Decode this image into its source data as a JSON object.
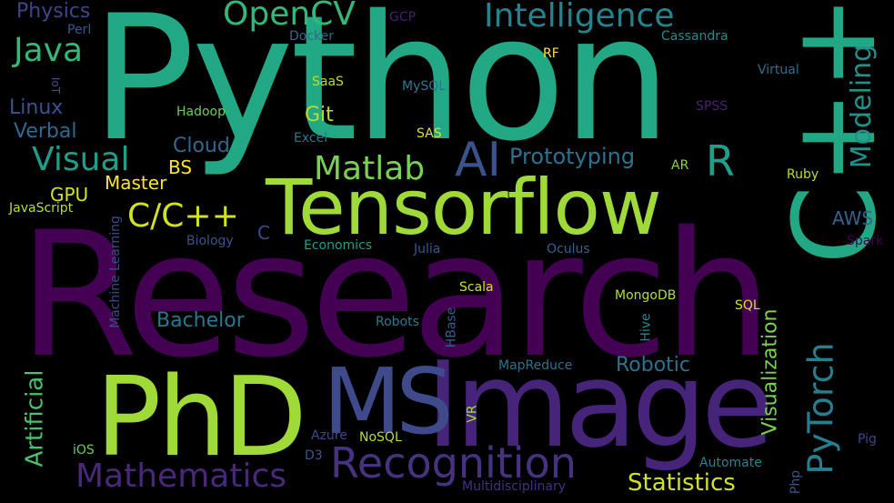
{
  "words": [
    {
      "id": "python",
      "text": "Python",
      "color": "#22a884"
    },
    {
      "id": "research",
      "text": "Research",
      "color": "#440154"
    },
    {
      "id": "tensorflow",
      "text": "Tensorflow",
      "color": "#a0da39"
    },
    {
      "id": "phd",
      "text": "PhD",
      "color": "#a0da39"
    },
    {
      "id": "image",
      "text": "Image",
      "color": "#46247a"
    },
    {
      "id": "ms",
      "text": "MS",
      "color": "#3e4a89"
    },
    {
      "id": "cpp",
      "text": "C++",
      "color": "#22a884"
    },
    {
      "id": "recognition",
      "text": "Recognition",
      "color": "#46327e"
    },
    {
      "id": "mathematics",
      "text": "Mathematics",
      "color": "#482878"
    },
    {
      "id": "pytorch",
      "text": "PyTorch",
      "color": "#277f8e"
    },
    {
      "id": "ai",
      "text": "AI",
      "color": "#3b528b"
    },
    {
      "id": "r",
      "text": "R",
      "color": "#1f9e89"
    },
    {
      "id": "opencv",
      "text": "OpenCV",
      "color": "#35b779"
    },
    {
      "id": "intelligence",
      "text": "Intelligence",
      "color": "#25838e"
    },
    {
      "id": "java",
      "text": "Java",
      "color": "#35b779"
    },
    {
      "id": "matlab",
      "text": "Matlab",
      "color": "#7ad151"
    },
    {
      "id": "visual",
      "text": "Visual",
      "color": "#1f9e89"
    },
    {
      "id": "cc",
      "text": "C/C++",
      "color": "#d2e21b"
    },
    {
      "id": "modeling",
      "text": "Modeling",
      "color": "#21918c"
    },
    {
      "id": "prototyping",
      "text": "Prototyping",
      "color": "#2c728e"
    },
    {
      "id": "statistics",
      "text": "Statistics",
      "color": "#d2e21b"
    },
    {
      "id": "artificial",
      "text": "Artificial",
      "color": "#4ac16d"
    },
    {
      "id": "visualization",
      "text": "Visualization",
      "color": "#7ad151"
    },
    {
      "id": "robotic",
      "text": "Robotic",
      "color": "#2c728e"
    },
    {
      "id": "bachelor",
      "text": "Bachelor",
      "color": "#2a788e"
    },
    {
      "id": "physics",
      "text": "Physics",
      "color": "#414487"
    },
    {
      "id": "linux",
      "text": "Linux",
      "color": "#3b528b"
    },
    {
      "id": "verbal",
      "text": "Verbal",
      "color": "#31688e"
    },
    {
      "id": "git",
      "text": "Git",
      "color": "#b5de2b"
    },
    {
      "id": "cloud",
      "text": "Cloud",
      "color": "#31688e"
    },
    {
      "id": "master",
      "text": "Master",
      "color": "#fde725"
    },
    {
      "id": "bs",
      "text": "BS",
      "color": "#fde725"
    },
    {
      "id": "gpu",
      "text": "GPU",
      "color": "#d2e21b"
    },
    {
      "id": "aws",
      "text": "AWS",
      "color": "#33638d"
    },
    {
      "id": "c",
      "text": "C",
      "color": "#3e4a89"
    },
    {
      "id": "cassandra",
      "text": "Cassandra",
      "color": "#238a8d"
    },
    {
      "id": "docker",
      "text": "Docker",
      "color": "#31688e"
    },
    {
      "id": "perl",
      "text": "Perl",
      "color": "#38598c"
    },
    {
      "id": "gcp",
      "text": "GCP",
      "color": "#481f70"
    },
    {
      "id": "rf",
      "text": "RF",
      "color": "#fde725"
    },
    {
      "id": "virtual",
      "text": "Virtual",
      "color": "#2d708e"
    },
    {
      "id": "saas",
      "text": "SaaS",
      "color": "#b5de2b"
    },
    {
      "id": "mysql",
      "text": "MySQL",
      "color": "#2a788e"
    },
    {
      "id": "hadoop",
      "text": "Hadoop",
      "color": "#6ccd5a"
    },
    {
      "id": "spss",
      "text": "SPSS",
      "color": "#482173"
    },
    {
      "id": "excel",
      "text": "Excel",
      "color": "#2a788e"
    },
    {
      "id": "sas",
      "text": "SAS",
      "color": "#dde318"
    },
    {
      "id": "iot",
      "text": "IoT",
      "color": "#3b528b"
    },
    {
      "id": "javascript",
      "text": "JavaScript",
      "color": "#b5de2b"
    },
    {
      "id": "ar",
      "text": "AR",
      "color": "#86d549"
    },
    {
      "id": "ruby",
      "text": "Ruby",
      "color": "#b8de29"
    },
    {
      "id": "machine-learning",
      "text": "Machine Learning",
      "color": "#3e4a89"
    },
    {
      "id": "biology",
      "text": "Biology",
      "color": "#3b528b"
    },
    {
      "id": "economics",
      "text": "Economics",
      "color": "#1f9e89"
    },
    {
      "id": "julia",
      "text": "Julia",
      "color": "#39568c"
    },
    {
      "id": "oculus",
      "text": "Oculus",
      "color": "#33638d"
    },
    {
      "id": "spark",
      "text": "Spark",
      "color": "#440154"
    },
    {
      "id": "scala",
      "text": "Scala",
      "color": "#d2e21b"
    },
    {
      "id": "mongodb",
      "text": "MongoDB",
      "color": "#b5de2b"
    },
    {
      "id": "sql",
      "text": "SQL",
      "color": "#d2e21b"
    },
    {
      "id": "hbase",
      "text": "HBase",
      "color": "#355f8d"
    },
    {
      "id": "robots",
      "text": "Robots",
      "color": "#2a788e"
    },
    {
      "id": "hive",
      "text": "Hive",
      "color": "#23898e"
    },
    {
      "id": "mapreduce",
      "text": "MapReduce",
      "color": "#2c728e"
    },
    {
      "id": "vr",
      "text": "VR",
      "color": "#a5db36"
    },
    {
      "id": "azure",
      "text": "Azure",
      "color": "#3e4989"
    },
    {
      "id": "nosql",
      "text": "NoSQL",
      "color": "#b5de2b"
    },
    {
      "id": "ios",
      "text": "iOS",
      "color": "#6ccd5a"
    },
    {
      "id": "d3",
      "text": "D3",
      "color": "#39568c"
    },
    {
      "id": "automate",
      "text": "Automate",
      "color": "#26828e"
    },
    {
      "id": "pig",
      "text": "Pig",
      "color": "#404688"
    },
    {
      "id": "multidisciplinary",
      "text": "Multidisciplinary",
      "color": "#46307e"
    },
    {
      "id": "php",
      "text": "Php",
      "color": "#3b528b"
    }
  ]
}
